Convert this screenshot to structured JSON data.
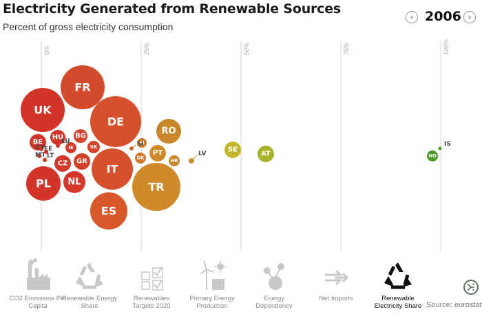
{
  "header": {
    "title": "Electricity Generated from Renewable Sources",
    "subtitle": "Percent of gross electricity consumption",
    "year": "2006",
    "prev_symbol": "‹",
    "next_symbol": "›"
  },
  "chart_data": {
    "type": "scatter",
    "x_axis": {
      "unit": "percent",
      "ticks": [
        "0%",
        "25%",
        "50%",
        "75%",
        "100%"
      ],
      "tick_values": [
        0,
        25,
        50,
        75,
        100
      ],
      "range": [
        -3,
        110
      ]
    },
    "grid": true,
    "points": [
      {
        "label": "FR",
        "x": 14,
        "color": "#d44a2c"
      },
      {
        "label": "UK",
        "x": 1,
        "color": "#d2342a"
      },
      {
        "label": "DE",
        "x": 18,
        "color": "#d6502b"
      },
      {
        "label": "RO",
        "x": 30,
        "color": "#c9862a"
      },
      {
        "label": "SE",
        "x": 48,
        "color": "#c2b72a"
      },
      {
        "label": "AT",
        "x": 56,
        "color": "#a8b22a"
      },
      {
        "label": "NO",
        "x": 98,
        "color": "#4c9a2a"
      },
      {
        "label": "IS",
        "x": 100,
        "color": "#4c9a2a"
      },
      {
        "label": "IT",
        "x": 17,
        "color": "#d6502b"
      },
      {
        "label": "ES",
        "x": 17.5,
        "color": "#d9582b"
      },
      {
        "label": "TR",
        "x": 29,
        "color": "#cf8a2a"
      },
      {
        "label": "PL",
        "x": 0.5,
        "color": "#d2342a"
      },
      {
        "label": "NL",
        "x": 8,
        "color": "#d3382a"
      },
      {
        "label": "CZ",
        "x": 5,
        "color": "#d3382a"
      },
      {
        "label": "GR",
        "x": 10,
        "color": "#d3402a"
      },
      {
        "label": "BE",
        "x": -1,
        "color": "#d2342a"
      },
      {
        "label": "HU",
        "x": 4,
        "color": "#d2342a"
      },
      {
        "label": "BG",
        "x": 10,
        "color": "#d4452b"
      },
      {
        "label": "SK",
        "x": 13,
        "color": "#d4452b"
      },
      {
        "label": "IE",
        "x": 7.5,
        "color": "#d3382a"
      },
      {
        "label": "PT",
        "x": 29,
        "color": "#cf8a2a"
      },
      {
        "label": "DK",
        "x": 25,
        "color": "#d07a2a"
      },
      {
        "label": "FI",
        "x": 25.5,
        "color": "#d07a2a"
      },
      {
        "label": "HR",
        "x": 33.5,
        "color": "#c9862a"
      },
      {
        "label": "SI",
        "x": 23,
        "color": "#d06a2a"
      },
      {
        "label": "LV",
        "x": 37.5,
        "color": "#c9962a"
      },
      {
        "label": "LU",
        "x": 4,
        "color": "#d2342a"
      },
      {
        "label": "CY",
        "x": 0,
        "color": "#d2342a"
      },
      {
        "label": "MT",
        "x": 0,
        "color": "#d2342a"
      },
      {
        "label": "EE",
        "x": 1,
        "color": "#d2342a"
      },
      {
        "label": "LT",
        "x": 3,
        "color": "#d2342a"
      }
    ]
  },
  "bottom_nav": {
    "items": [
      {
        "label_line1": "CO2 Emissions Per",
        "label_line2": "Capita",
        "icon": "factory-icon",
        "active": false
      },
      {
        "label_line1": "Renewable Energy",
        "label_line2": "Share",
        "icon": "recycle-icon",
        "active": false
      },
      {
        "label_line1": "Renewables",
        "label_line2": "Targets 2020",
        "icon": "checkbox-icon",
        "active": false
      },
      {
        "label_line1": "Primary Energy",
        "label_line2": "Production",
        "icon": "wind-solar-icon",
        "active": false
      },
      {
        "label_line1": "Energy",
        "label_line2": "Dependency",
        "icon": "network-icon",
        "active": false
      },
      {
        "label_line1": "Net Imports",
        "label_line2": "",
        "icon": "arrows-icon",
        "active": false
      },
      {
        "label_line1": "Renewable",
        "label_line2": "Electricity Share",
        "icon": "recycle-icon",
        "active": true
      }
    ],
    "source": "Source: eurostat",
    "active_color": "#111111",
    "inactive_color": "#c8c8c8"
  }
}
